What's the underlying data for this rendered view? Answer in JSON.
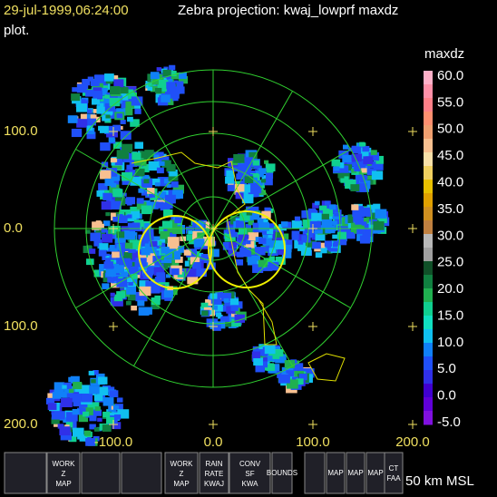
{
  "header": {
    "timestamp": "29-jul-1999,06:24:00",
    "title": "Zebra projection: kwaj_lowprf maxdz",
    "title_cont": "plot."
  },
  "axes": {
    "y_labels": [
      "100.0",
      "0.0",
      "100.0",
      "200.0"
    ],
    "x_labels": [
      "-100.0",
      "0.0",
      "100.0",
      "200.0"
    ]
  },
  "colorbar": {
    "label": "maxdz",
    "labels": [
      "60.0",
      "55.0",
      "50.0",
      "45.0",
      "40.0",
      "35.0",
      "30.0",
      "25.0",
      "20.0",
      "15.0",
      "10.0",
      "5.0",
      "0.0",
      "-5.0"
    ],
    "colors": [
      "#ffb0c8",
      "#ff90a8",
      "#ff8088",
      "#ff9070",
      "#f0a070",
      "#f8c090",
      "#f8e0a8",
      "#f0d060",
      "#e8c000",
      "#e0a000",
      "#d09020",
      "#c08040",
      "#b8b8b8",
      "#a0a0a0",
      "#105028",
      "#108040",
      "#20b050",
      "#10d090",
      "#10e0c0",
      "#10c0f0",
      "#1080f8",
      "#2050f8",
      "#3030e8",
      "#4000d0",
      "#6000d8",
      "#8010e0"
    ]
  },
  "toolbar": {
    "buttons": [
      [
        "WORK",
        "Z",
        "MAP"
      ],
      [
        "WORK",
        "Z",
        "MAP"
      ],
      [
        "RAIN",
        "RATE",
        "KWAJ"
      ],
      [
        "CONV",
        "SF",
        "KWA"
      ],
      [
        "BOUNDS"
      ],
      [
        "MAP"
      ],
      [
        "MAP"
      ],
      [
        "MAP"
      ],
      [
        "CT",
        "FAA"
      ]
    ],
    "altitude": "50 km MSL"
  }
}
